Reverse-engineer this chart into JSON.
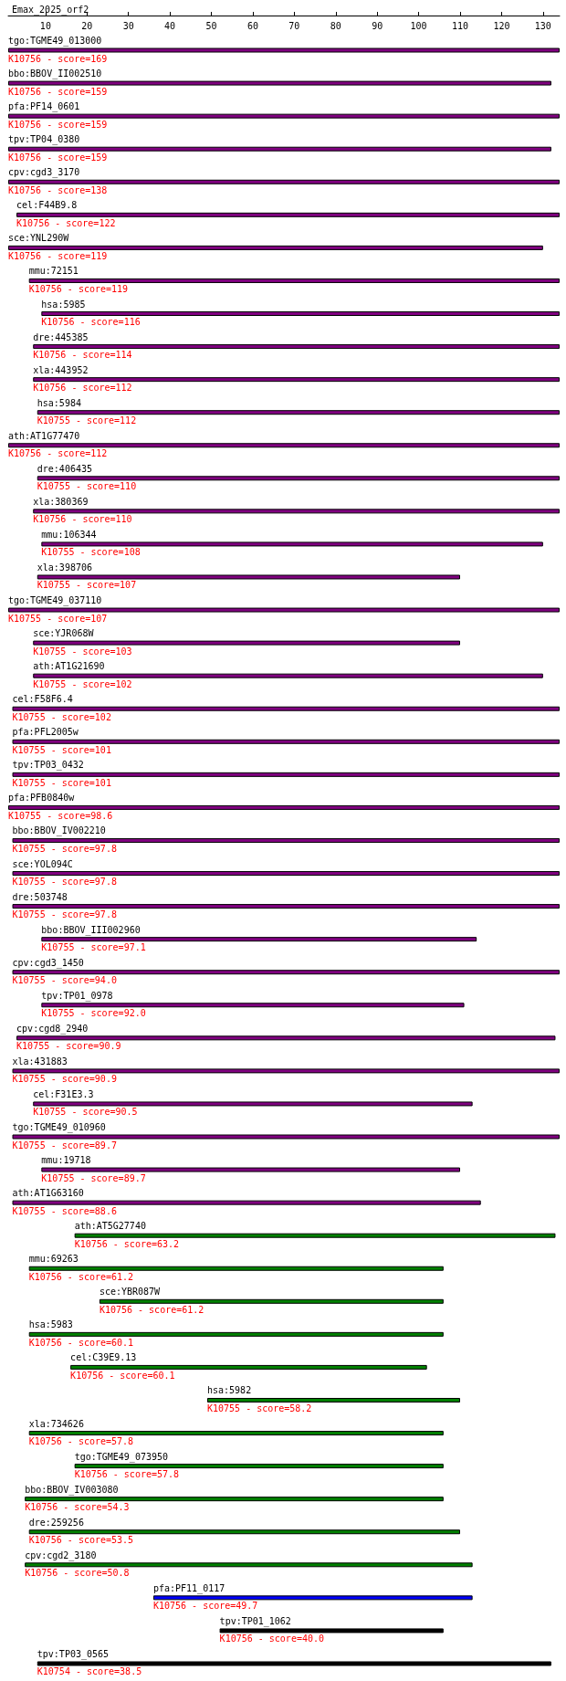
{
  "chart_data": {
    "type": "bar",
    "orientation": "horizontal",
    "title": "Emax_2025_orf2",
    "categories": [
      "tgo:TGME49_013000",
      "bbo:BBOV_II002510",
      "pfa:PF14_0601",
      "tpv:TP04_0380",
      "cpv:cgd3_3170",
      "cel:F44B9.8",
      "sce:YNL290W",
      "mmu:72151",
      "hsa:5985",
      "dre:445385",
      "xla:443952",
      "hsa:5984",
      "ath:AT1G77470",
      "dre:406435",
      "xla:380369",
      "mmu:106344",
      "xla:398706",
      "tgo:TGME49_037110",
      "sce:YJR068W",
      "ath:AT1G21690",
      "cel:F58F6.4",
      "pfa:PFL2005w",
      "tpv:TP03_0432",
      "pfa:PFB0840w",
      "bbo:BBOV_IV002210",
      "sce:YOL094C",
      "dre:503748",
      "bbo:BBOV_III002960",
      "cpv:cgd3_1450",
      "tpv:TP01_0978",
      "cpv:cgd8_2940",
      "xla:431883",
      "cel:F31E3.3",
      "tgo:TGME49_010960",
      "mmu:19718",
      "ath:AT1G63160",
      "ath:AT5G27740",
      "mmu:69263",
      "sce:YBR087W",
      "hsa:5983",
      "cel:C39E9.13",
      "hsa:5982",
      "xla:734626",
      "tgo:TGME49_073950",
      "bbo:BBOV_IV003080",
      "dre:259256",
      "cpv:cgd2_3180",
      "pfa:PF11_0117",
      "tpv:TP01_1062",
      "tpv:TP03_0565"
    ],
    "base": [
      1,
      1,
      1,
      1,
      1,
      3,
      1,
      6,
      9,
      7,
      7,
      8,
      1,
      8,
      7,
      9,
      8,
      1,
      7,
      7,
      2,
      2,
      2,
      1,
      2,
      2,
      2,
      9,
      2,
      9,
      3,
      2,
      7,
      2,
      9,
      2,
      17,
      6,
      23,
      6,
      16,
      49,
      6,
      17,
      5,
      6,
      5,
      36,
      52,
      8
    ],
    "values": [
      133,
      131,
      133,
      131,
      133,
      131,
      129,
      128,
      125,
      127,
      127,
      126,
      133,
      126,
      127,
      121,
      102,
      133,
      103,
      123,
      132,
      132,
      132,
      133,
      132,
      132,
      132,
      105,
      132,
      102,
      130,
      132,
      106,
      132,
      101,
      113,
      116,
      100,
      83,
      100,
      86,
      61,
      100,
      89,
      101,
      104,
      108,
      77,
      54,
      124
    ],
    "colors": [
      "#800080",
      "#800080",
      "#800080",
      "#800080",
      "#800080",
      "#800080",
      "#800080",
      "#800080",
      "#800080",
      "#800080",
      "#800080",
      "#800080",
      "#800080",
      "#800080",
      "#800080",
      "#800080",
      "#800080",
      "#800080",
      "#800080",
      "#800080",
      "#800080",
      "#800080",
      "#800080",
      "#800080",
      "#800080",
      "#800080",
      "#800080",
      "#800080",
      "#800080",
      "#800080",
      "#800080",
      "#800080",
      "#800080",
      "#800080",
      "#800080",
      "#800080",
      "#008000",
      "#008000",
      "#008000",
      "#008000",
      "#008000",
      "#008000",
      "#008000",
      "#008000",
      "#008000",
      "#008000",
      "#008000",
      "#0000ff",
      "#000000",
      "#000000"
    ],
    "xlim": [
      1,
      134
    ],
    "xticks": [
      10,
      20,
      30,
      40,
      50,
      60,
      70,
      80,
      90,
      100,
      110,
      120,
      130
    ],
    "annotations": [
      {
        "text": "K10756 - score=169",
        "x": 1,
        "y": "tgo:TGME49_013000"
      },
      {
        "text": "K10756 - score=159",
        "x": 1,
        "y": "bbo:BBOV_II002510"
      },
      {
        "text": "K10756 - score=159",
        "x": 1,
        "y": "pfa:PF14_0601"
      },
      {
        "text": "K10756 - score=159",
        "x": 1,
        "y": "tpv:TP04_0380"
      },
      {
        "text": "K10756 - score=138",
        "x": 1,
        "y": "cpv:cgd3_3170"
      },
      {
        "text": "K10756 - score=122",
        "x": 3,
        "y": "cel:F44B9.8"
      },
      {
        "text": "K10756 - score=119",
        "x": 1,
        "y": "sce:YNL290W"
      },
      {
        "text": "K10756 - score=119",
        "x": 6,
        "y": "mmu:72151"
      },
      {
        "text": "K10756 - score=116",
        "x": 9,
        "y": "hsa:5985"
      },
      {
        "text": "K10756 - score=114",
        "x": 7,
        "y": "dre:445385"
      },
      {
        "text": "K10756 - score=112",
        "x": 7,
        "y": "xla:443952"
      },
      {
        "text": "K10755 - score=112",
        "x": 8,
        "y": "hsa:5984"
      },
      {
        "text": "K10756 - score=112",
        "x": 1,
        "y": "ath:AT1G77470"
      },
      {
        "text": "K10755 - score=110",
        "x": 8,
        "y": "dre:406435"
      },
      {
        "text": "K10756 - score=110",
        "x": 7,
        "y": "xla:380369"
      },
      {
        "text": "K10755 - score=108",
        "x": 9,
        "y": "mmu:106344"
      },
      {
        "text": "K10755 - score=107",
        "x": 8,
        "y": "xla:398706"
      },
      {
        "text": "K10755 - score=107",
        "x": 1,
        "y": "tgo:TGME49_037110"
      },
      {
        "text": "K10755 - score=103",
        "x": 7,
        "y": "sce:YJR068W"
      },
      {
        "text": "K10755 - score=102",
        "x": 7,
        "y": "ath:AT1G21690"
      },
      {
        "text": "K10755 - score=102",
        "x": 2,
        "y": "cel:F58F6.4"
      },
      {
        "text": "K10755 - score=101",
        "x": 2,
        "y": "pfa:PFL2005w"
      },
      {
        "text": "K10755 - score=101",
        "x": 2,
        "y": "tpv:TP03_0432"
      },
      {
        "text": "K10755 - score=98.6",
        "x": 1,
        "y": "pfa:PFB0840w"
      },
      {
        "text": "K10755 - score=97.8",
        "x": 2,
        "y": "bbo:BBOV_IV002210"
      },
      {
        "text": "K10755 - score=97.8",
        "x": 2,
        "y": "sce:YOL094C"
      },
      {
        "text": "K10755 - score=97.8",
        "x": 2,
        "y": "dre:503748"
      },
      {
        "text": "K10755 - score=97.1",
        "x": 9,
        "y": "bbo:BBOV_III002960"
      },
      {
        "text": "K10755 - score=94.0",
        "x": 2,
        "y": "cpv:cgd3_1450"
      },
      {
        "text": "K10755 - score=92.0",
        "x": 9,
        "y": "tpv:TP01_0978"
      },
      {
        "text": "K10755 - score=90.9",
        "x": 3,
        "y": "cpv:cgd8_2940"
      },
      {
        "text": "K10755 - score=90.9",
        "x": 2,
        "y": "xla:431883"
      },
      {
        "text": "K10755 - score=90.5",
        "x": 7,
        "y": "cel:F31E3.3"
      },
      {
        "text": "K10755 - score=89.7",
        "x": 2,
        "y": "tgo:TGME49_010960"
      },
      {
        "text": "K10755 - score=89.7",
        "x": 9,
        "y": "mmu:19718"
      },
      {
        "text": "K10755 - score=88.6",
        "x": 2,
        "y": "ath:AT1G63160"
      },
      {
        "text": "K10756 - score=63.2",
        "x": 17,
        "y": "ath:AT5G27740"
      },
      {
        "text": "K10756 - score=61.2",
        "x": 6,
        "y": "mmu:69263"
      },
      {
        "text": "K10756 - score=61.2",
        "x": 23,
        "y": "sce:YBR087W"
      },
      {
        "text": "K10756 - score=60.1",
        "x": 6,
        "y": "hsa:5983"
      },
      {
        "text": "K10756 - score=60.1",
        "x": 16,
        "y": "cel:C39E9.13"
      },
      {
        "text": "K10755 - score=58.2",
        "x": 49,
        "y": "hsa:5982"
      },
      {
        "text": "K10756 - score=57.8",
        "x": 6,
        "y": "xla:734626"
      },
      {
        "text": "K10756 - score=57.8",
        "x": 17,
        "y": "tgo:TGME49_073950"
      },
      {
        "text": "K10756 - score=54.3",
        "x": 5,
        "y": "bbo:BBOV_IV003080"
      },
      {
        "text": "K10756 - score=53.5",
        "x": 6,
        "y": "dre:259256"
      },
      {
        "text": "K10756 - score=50.8",
        "x": 5,
        "y": "cpv:cgd2_3180"
      },
      {
        "text": "K10756 - score=49.7",
        "x": 36,
        "y": "pfa:PF11_0117"
      },
      {
        "text": "K10756 - score=40.0",
        "x": 52,
        "y": "tpv:TP01_1062"
      },
      {
        "text": "K10754 - score=38.5",
        "x": 8,
        "y": "tpv:TP03_0565"
      }
    ]
  }
}
